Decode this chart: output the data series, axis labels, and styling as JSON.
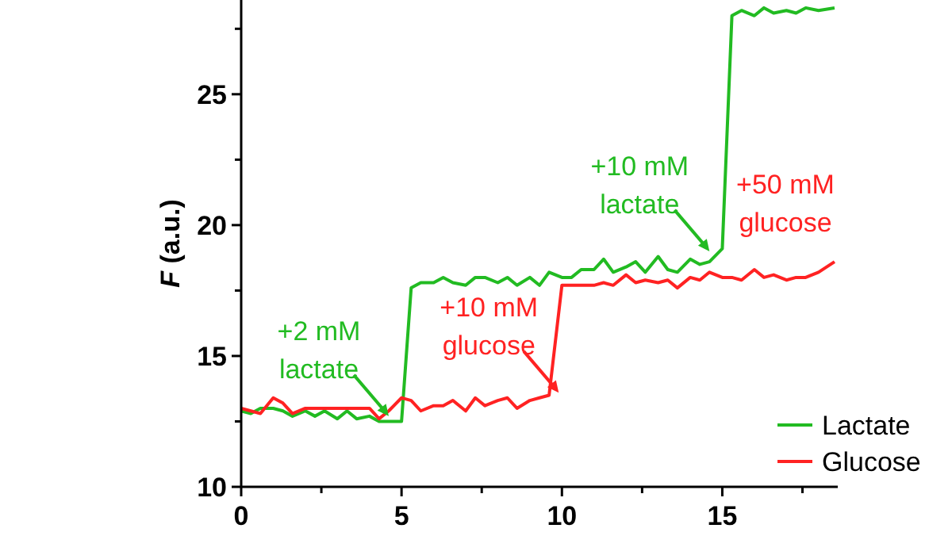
{
  "chart_data": {
    "type": "line",
    "ylabel": "F (a.u.)",
    "xlim": [
      0,
      18.6
    ],
    "ylim": [
      10,
      28.6
    ],
    "xticks": [
      0,
      {
        "value": 2.5,
        "label": null
      },
      5,
      {
        "value": 7.5,
        "label": null
      },
      10,
      {
        "value": 12.5,
        "label": null
      },
      15,
      {
        "value": 17.5,
        "label": null
      }
    ],
    "yticks": [
      10,
      {
        "value": 12.5,
        "label": null
      },
      15,
      {
        "value": 17.5,
        "label": null
      },
      20,
      {
        "value": 22.5,
        "label": null
      },
      25,
      {
        "value": 27.5,
        "label": null
      }
    ],
    "x": [
      0,
      0.3,
      0.6,
      1,
      1.3,
      1.6,
      2,
      2.3,
      2.6,
      3,
      3.3,
      3.6,
      4,
      4.3,
      4.6,
      5,
      5.3,
      5.6,
      6,
      6.3,
      6.6,
      7,
      7.3,
      7.6,
      8,
      8.3,
      8.6,
      9,
      9.3,
      9.6,
      10,
      10.3,
      10.6,
      11,
      11.3,
      11.6,
      12,
      12.3,
      12.6,
      13,
      13.3,
      13.6,
      14,
      14.3,
      14.6,
      15,
      15.3,
      15.6,
      16,
      16.3,
      16.6,
      17,
      17.3,
      17.6,
      18,
      18.5
    ],
    "series": [
      {
        "name": "Lactate",
        "color": "#22bb22",
        "values": [
          12.9,
          12.8,
          13,
          13,
          12.9,
          12.7,
          12.9,
          12.7,
          12.9,
          12.6,
          12.9,
          12.6,
          12.7,
          12.5,
          12.5,
          12.5,
          17.6,
          17.8,
          17.8,
          18,
          17.8,
          17.7,
          18,
          18,
          17.8,
          18,
          17.7,
          18,
          17.7,
          18.2,
          18,
          18,
          18.3,
          18.3,
          18.7,
          18.2,
          18.4,
          18.6,
          18.2,
          18.8,
          18.3,
          18.2,
          18.7,
          18.5,
          18.6,
          19.1,
          28,
          28.2,
          28,
          28.3,
          28.1,
          28.2,
          28.1,
          28.3,
          28.2,
          28.3
        ]
      },
      {
        "name": "Glucose",
        "color": "#ff2222",
        "values": [
          13,
          12.9,
          12.8,
          13.4,
          13.2,
          12.8,
          13,
          13,
          13,
          13,
          13,
          13,
          13,
          12.6,
          12.9,
          13.4,
          13.3,
          12.9,
          13.1,
          13.1,
          13.3,
          12.9,
          13.4,
          13.1,
          13.3,
          13.4,
          13,
          13.3,
          13.4,
          13.5,
          17.7,
          17.7,
          17.7,
          17.7,
          17.8,
          17.7,
          18.1,
          17.8,
          17.9,
          17.8,
          17.9,
          17.6,
          18,
          17.9,
          18.2,
          18,
          18,
          17.9,
          18.3,
          18,
          18.1,
          17.9,
          18,
          18,
          18.2,
          18.6
        ]
      }
    ],
    "annotations": [
      {
        "text": "+2 mM\nlactate",
        "x": 4.6,
        "y": 12.7
      },
      {
        "text": "+10 mM\nglucose",
        "x": 9.9,
        "y": 13.6
      },
      {
        "text": "+10 mM\nlactate",
        "x": 14.6,
        "y": 19
      },
      "+50 mM\nglucose"
    ],
    "legend": "bottom right"
  }
}
